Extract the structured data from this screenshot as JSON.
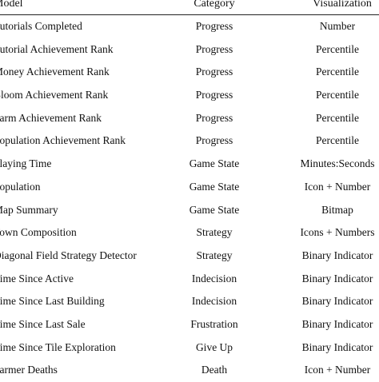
{
  "table": {
    "headers": {
      "model": "Model",
      "category": "Category",
      "visualization": "Visualization"
    },
    "rows": [
      {
        "model": "Tutorials Completed",
        "category": "Progress",
        "visualization": "Number"
      },
      {
        "model": "Tutorial Achievement Rank",
        "category": "Progress",
        "visualization": "Percentile"
      },
      {
        "model": "Money Achievement Rank",
        "category": "Progress",
        "visualization": "Percentile"
      },
      {
        "model": "Bloom Achievement Rank",
        "category": "Progress",
        "visualization": "Percentile"
      },
      {
        "model": "Farm Achievement Rank",
        "category": "Progress",
        "visualization": "Percentile"
      },
      {
        "model": "Population Achievement Rank",
        "category": "Progress",
        "visualization": "Percentile"
      },
      {
        "model": "Playing Time",
        "category": "Game State",
        "visualization": "Minutes:Seconds"
      },
      {
        "model": "Population",
        "category": "Game State",
        "visualization": "Icon + Number"
      },
      {
        "model": "Map Summary",
        "category": "Game State",
        "visualization": "Bitmap"
      },
      {
        "model": "Town Composition",
        "category": "Strategy",
        "visualization": "Icons + Numbers"
      },
      {
        "model": "Diagonal Field Strategy Detector",
        "category": "Strategy",
        "visualization": "Binary Indicator"
      },
      {
        "model": "Time Since Active",
        "category": "Indecision",
        "visualization": "Binary Indicator"
      },
      {
        "model": "Time Since Last Building",
        "category": "Indecision",
        "visualization": "Binary Indicator"
      },
      {
        "model": "Time Since Last Sale",
        "category": "Frustration",
        "visualization": "Binary Indicator"
      },
      {
        "model": "Time Since Tile Exploration",
        "category": "Give Up",
        "visualization": "Binary Indicator"
      },
      {
        "model": "Farmer Deaths",
        "category": "Death",
        "visualization": "Icon + Number"
      }
    ]
  }
}
